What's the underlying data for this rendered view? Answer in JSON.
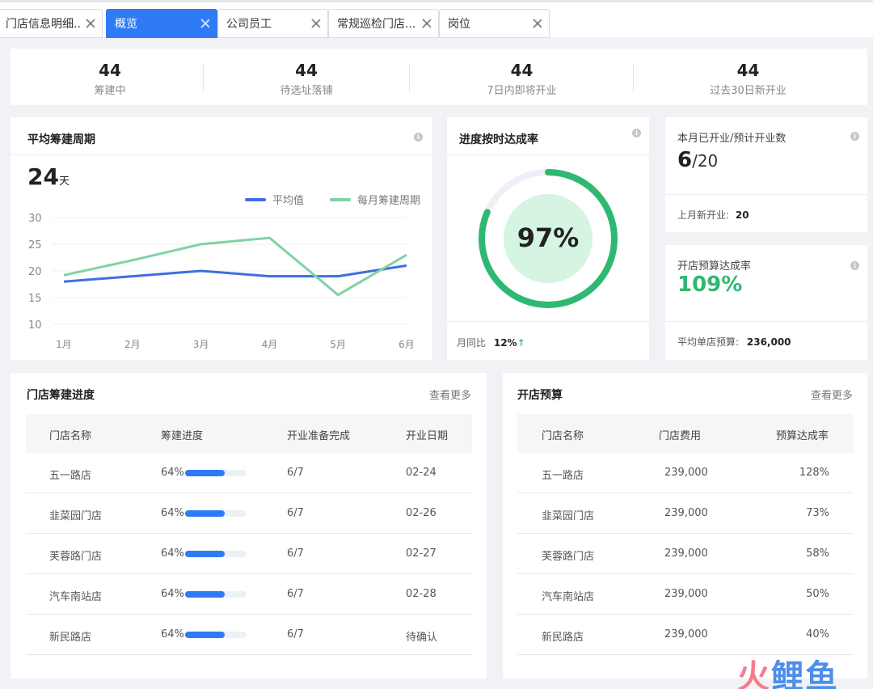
{
  "tabs": [
    {
      "label": "门店信息明细...",
      "active": false
    },
    {
      "label": "概览",
      "active": true
    },
    {
      "label": "公司员工",
      "active": false
    },
    {
      "label": "常规巡检门店...",
      "active": false
    },
    {
      "label": "岗位",
      "active": false
    }
  ],
  "stats": [
    {
      "value": "44",
      "label": "筹建中"
    },
    {
      "value": "44",
      "label": "待选址落铺"
    },
    {
      "value": "44",
      "label": "7日内即将开业"
    },
    {
      "value": "44",
      "label": "过去30日新开业"
    }
  ],
  "cycle_card": {
    "title": "平均筹建周期",
    "value": "24",
    "unit": "天"
  },
  "chart_data": {
    "type": "line",
    "categories": [
      "1月",
      "2月",
      "3月",
      "4月",
      "5月",
      "6月"
    ],
    "series": [
      {
        "name": "平均值",
        "color": "#3d6fe0",
        "values": [
          18,
          19,
          20,
          19,
          19,
          21
        ]
      },
      {
        "name": "每月筹建周期",
        "color": "#7fd3a6",
        "values": [
          19.2,
          22,
          25,
          26.2,
          15.5,
          23
        ]
      }
    ],
    "yticks": [
      "30",
      "25",
      "20",
      "15",
      "10"
    ],
    "ylim": [
      10,
      30
    ],
    "grid": true,
    "legend": "top-right"
  },
  "ontime_card": {
    "title": "进度按时达成率",
    "value": "97%",
    "progress": 0.97,
    "mom_label": "月同比",
    "mom_value": "12%",
    "mom_arrow": "↑"
  },
  "opened_card": {
    "title": "本月已开业/预计开业数",
    "value": "6",
    "total": "/20",
    "last_label": "上月新开业:",
    "last_value": "20"
  },
  "budget_rate_card": {
    "title": "开店预算达成率",
    "value": "109%",
    "avg_label": "平均单店预算:",
    "avg_value": "236,000"
  },
  "progress_table": {
    "title": "门店筹建进度",
    "more": "查看更多",
    "headers": [
      "门店名称",
      "筹建进度",
      "开业准备完成",
      "开业日期"
    ],
    "rows": [
      {
        "name": "五一路店",
        "progress": "64%",
        "progress_value": 0.64,
        "ready": "6/7",
        "date": "02-24"
      },
      {
        "name": "韭菜园门店",
        "progress": "64%",
        "progress_value": 0.64,
        "ready": "6/7",
        "date": "02-26"
      },
      {
        "name": "芙蓉路门店",
        "progress": "64%",
        "progress_value": 0.64,
        "ready": "6/7",
        "date": "02-27"
      },
      {
        "name": "汽车南站店",
        "progress": "64%",
        "progress_value": 0.64,
        "ready": "6/7",
        "date": "02-28"
      },
      {
        "name": "新民路店",
        "progress": "64%",
        "progress_value": 0.64,
        "ready": "6/7",
        "date": "待确认"
      }
    ]
  },
  "budget_table": {
    "title": "开店预算",
    "more": "查看更多",
    "headers": [
      "门店名称",
      "门店费用",
      "预算达成率"
    ],
    "rows": [
      {
        "name": "五一路店",
        "cost": "239,000",
        "rate": "128%"
      },
      {
        "name": "韭菜园门店",
        "cost": "239,000",
        "rate": "73%"
      },
      {
        "name": "芙蓉路门店",
        "cost": "239,000",
        "rate": "58%"
      },
      {
        "name": "汽车南站店",
        "cost": "239,000",
        "rate": "50%"
      },
      {
        "name": "新民路店",
        "cost": "239,000",
        "rate": "40%"
      }
    ]
  },
  "watermark": {
    "part1": "火",
    "part2": "鲤鱼"
  },
  "colors": {
    "accent": "#2f7bf5",
    "green": "#2eb872",
    "line_blue": "#3d6fe0",
    "line_green": "#7fd3a6"
  }
}
